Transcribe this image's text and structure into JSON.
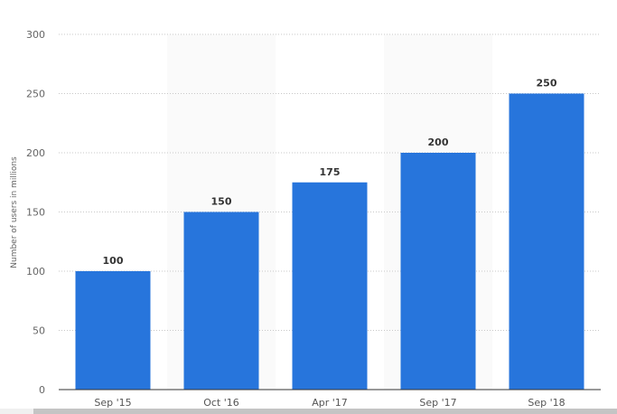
{
  "chart_data": {
    "type": "bar",
    "categories": [
      "Sep '15",
      "Oct '16",
      "Apr '17",
      "Sep '17",
      "Sep '18"
    ],
    "values": [
      100,
      150,
      175,
      200,
      250
    ],
    "title": "",
    "xlabel": "",
    "ylabel": "Number of users in millions",
    "ylim": [
      0,
      300
    ],
    "yticks": [
      0,
      50,
      100,
      150,
      200,
      250,
      300
    ],
    "grid": true,
    "data_labels": true,
    "bar_color": "#2775dc",
    "band_color": "#fafafa"
  }
}
